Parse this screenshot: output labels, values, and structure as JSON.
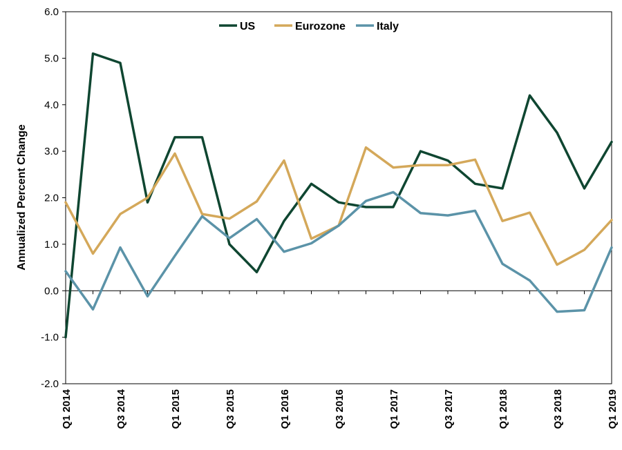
{
  "chart_data": {
    "type": "line",
    "title": "",
    "xlabel": "",
    "ylabel": "Annualized Percent Change",
    "ylim": [
      -2.0,
      6.0
    ],
    "yticks": [
      "6.0",
      "5.0",
      "4.0",
      "3.0",
      "2.0",
      "1.0",
      "0.0",
      "-1.0",
      "-2.0"
    ],
    "ytick_values": [
      6,
      5,
      4,
      3,
      2,
      1,
      0,
      -1,
      -2
    ],
    "grid": false,
    "legend_position": "top-center",
    "x": [
      "Q1 2014",
      "Q2 2014",
      "Q3 2014",
      "Q4 2014",
      "Q1 2015",
      "Q2 2015",
      "Q3 2015",
      "Q4 2015",
      "Q1 2016",
      "Q2 2016",
      "Q3 2016",
      "Q4 2016",
      "Q1 2017",
      "Q2 2017",
      "Q3 2017",
      "Q4 2017",
      "Q1 2018",
      "Q2 2018",
      "Q3 2018",
      "Q4 2018",
      "Q1 2019"
    ],
    "xtick_labels": [
      "Q1 2014",
      "Q3 2014",
      "Q1 2015",
      "Q3 2015",
      "Q1 2016",
      "Q3 2016",
      "Q1 2017",
      "Q3 2017",
      "Q1 2018",
      "Q3 2018",
      "Q1 2019"
    ],
    "series": [
      {
        "name": "US",
        "color": "#0f4631",
        "values": [
          -1.0,
          5.1,
          4.9,
          1.9,
          3.3,
          3.3,
          1.0,
          0.4,
          1.5,
          2.3,
          1.9,
          1.8,
          1.8,
          3.0,
          2.8,
          2.3,
          2.2,
          4.2,
          3.4,
          2.2,
          3.2
        ]
      },
      {
        "name": "Eurozone",
        "color": "#d4a85a",
        "values": [
          1.9,
          0.8,
          1.65,
          2.0,
          2.95,
          1.65,
          1.55,
          1.92,
          2.8,
          1.12,
          1.4,
          3.08,
          2.65,
          2.7,
          2.7,
          2.82,
          1.5,
          1.68,
          0.56,
          0.88,
          1.52
        ]
      },
      {
        "name": "Italy",
        "color": "#5b93a8",
        "values": [
          0.42,
          -0.4,
          0.93,
          -0.12,
          0.75,
          1.6,
          1.13,
          1.54,
          0.84,
          1.02,
          1.4,
          1.93,
          2.12,
          1.67,
          1.62,
          1.72,
          0.58,
          0.22,
          -0.45,
          -0.42,
          0.93
        ]
      }
    ]
  }
}
